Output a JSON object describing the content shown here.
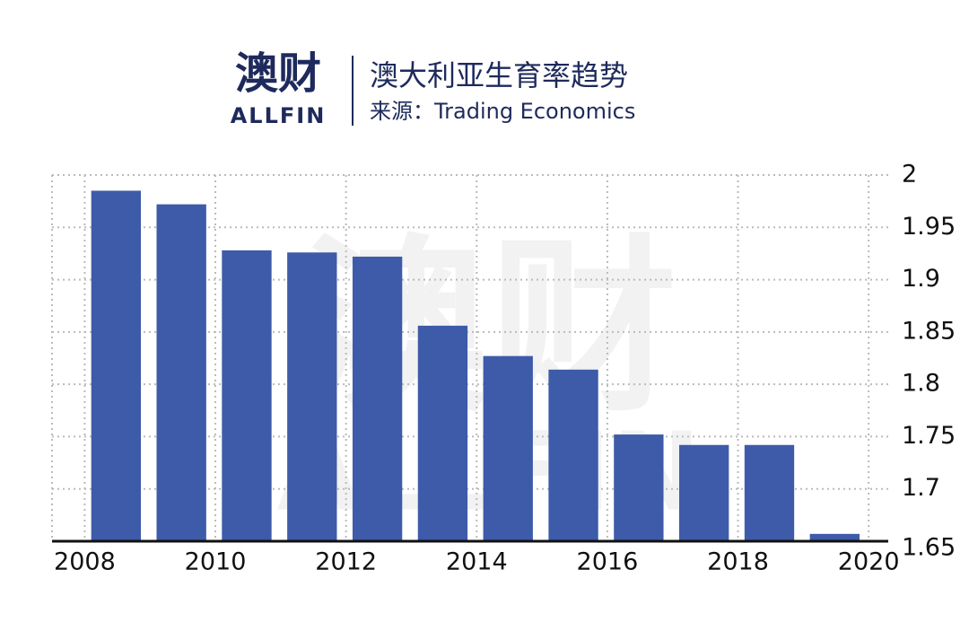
{
  "logo": {
    "name": "澳财",
    "sub": "ALLFIN"
  },
  "chart_data": {
    "type": "bar",
    "title": "澳大利亚生育率趋势",
    "subtitle": "来源：Trading Economics",
    "x": [
      2008,
      2009,
      2010,
      2011,
      2012,
      2013,
      2014,
      2015,
      2016,
      2017,
      2018,
      2019
    ],
    "values": [
      1.985,
      1.972,
      1.928,
      1.926,
      1.922,
      1.856,
      1.827,
      1.814,
      1.752,
      1.742,
      1.742,
      1.657
    ],
    "color": "#3d5ba9",
    "xlim": [
      2007.5,
      2020.3
    ],
    "xticks": [
      2008,
      2010,
      2012,
      2014,
      2016,
      2018,
      2020
    ],
    "ylim": [
      1.65,
      2
    ],
    "yticks": [
      1.65,
      1.7,
      1.75,
      1.8,
      1.85,
      1.9,
      1.95,
      2
    ],
    "grid": true
  }
}
